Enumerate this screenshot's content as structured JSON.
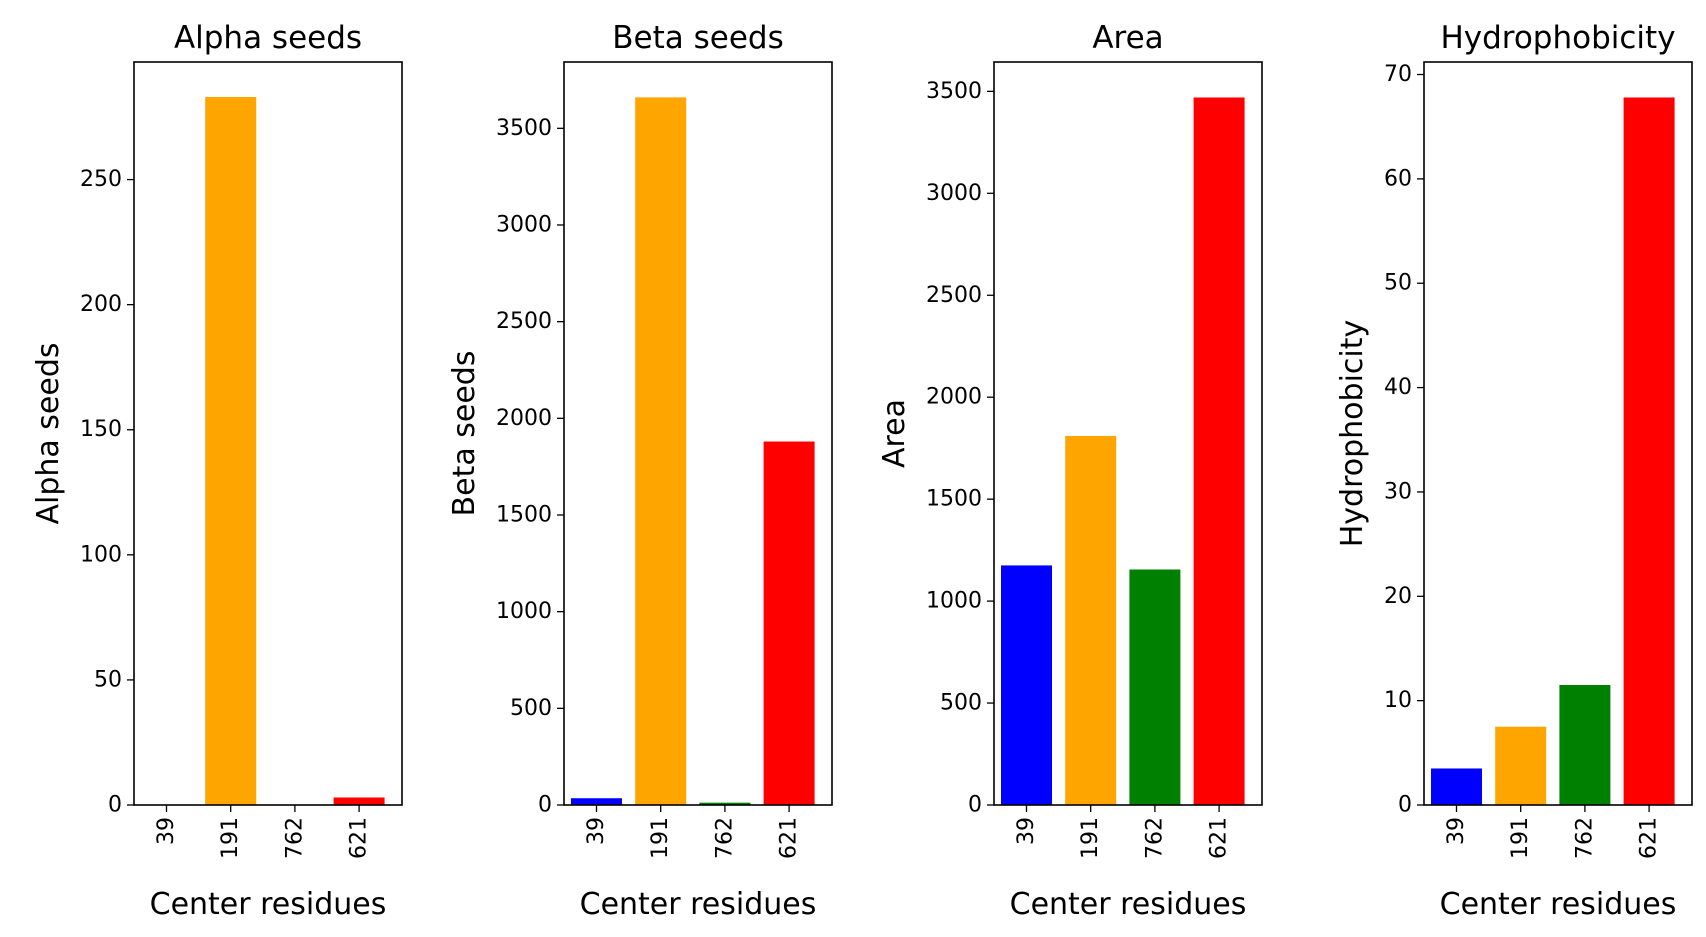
{
  "chart_data": [
    {
      "type": "bar",
      "title": "Alpha seeds",
      "xlabel": "Center residues",
      "ylabel": "Alpha seeds",
      "categories": [
        "39",
        "191",
        "762",
        "621"
      ],
      "values": [
        0,
        283,
        0,
        3
      ],
      "colors": [
        "#0000ff",
        "#ffa500",
        "#008000",
        "#ff0000"
      ],
      "ylim": [
        0,
        297
      ],
      "yticks": [
        0,
        50,
        100,
        150,
        200,
        250
      ],
      "x_tick_rotation": 90,
      "grid": false,
      "legend": "none"
    },
    {
      "type": "bar",
      "title": "Beta seeds",
      "xlabel": "Center residues",
      "ylabel": "Beta seeds",
      "categories": [
        "39",
        "191",
        "762",
        "621"
      ],
      "values": [
        35,
        3660,
        12,
        1880
      ],
      "colors": [
        "#0000ff",
        "#ffa500",
        "#008000",
        "#ff0000"
      ],
      "ylim": [
        0,
        3843
      ],
      "yticks": [
        0,
        500,
        1000,
        1500,
        2000,
        2500,
        3000,
        3500
      ],
      "x_tick_rotation": 90,
      "grid": false,
      "legend": "none"
    },
    {
      "type": "bar",
      "title": "Area",
      "xlabel": "Center residues",
      "ylabel": "Area",
      "categories": [
        "39",
        "191",
        "762",
        "621"
      ],
      "values": [
        1175,
        1810,
        1155,
        3470
      ],
      "colors": [
        "#0000ff",
        "#ffa500",
        "#008000",
        "#ff0000"
      ],
      "ylim": [
        0,
        3644
      ],
      "yticks": [
        0,
        500,
        1000,
        1500,
        2000,
        2500,
        3000,
        3500
      ],
      "x_tick_rotation": 90,
      "grid": false,
      "legend": "none"
    },
    {
      "type": "bar",
      "title": "Hydrophobicity",
      "xlabel": "Center residues",
      "ylabel": "Hydrophobicity",
      "categories": [
        "39",
        "191",
        "762",
        "621"
      ],
      "values": [
        3.5,
        7.5,
        11.5,
        67.8
      ],
      "colors": [
        "#0000ff",
        "#ffa500",
        "#008000",
        "#ff0000"
      ],
      "ylim": [
        0,
        71.2
      ],
      "yticks": [
        0,
        10,
        20,
        30,
        40,
        50,
        60,
        70
      ],
      "x_tick_rotation": 90,
      "grid": false,
      "legend": "none"
    }
  ]
}
